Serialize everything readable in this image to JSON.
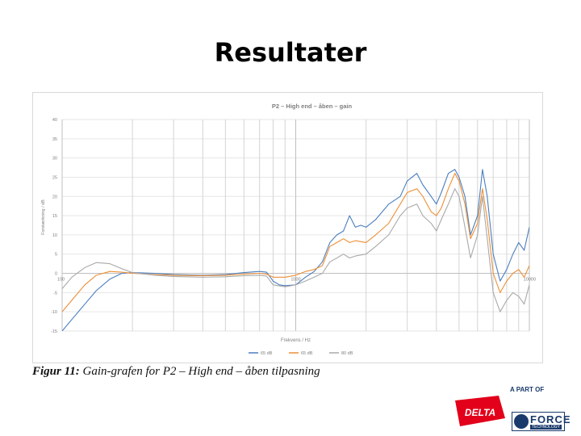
{
  "slide": {
    "title": "Resultater"
  },
  "caption": {
    "label": "Figur 11:",
    "text": "Gain-grafen for P2 – High end – åben tilpasning"
  },
  "logos": {
    "delta": "DELTA",
    "part_of": "A PART OF",
    "force": "FORCE",
    "technology": "TECHNOLOGY"
  },
  "chart_data": {
    "type": "line",
    "title": "P2 – High end – åben – gain",
    "xlabel": "Frekvens / Hz",
    "ylabel": "Forstærkning / dB",
    "x_scale": "log",
    "xlim": [
      100,
      10000
    ],
    "ylim": [
      -15,
      40
    ],
    "yticks": [
      -15,
      -10,
      -5,
      0,
      5,
      10,
      15,
      20,
      25,
      30,
      35,
      40
    ],
    "xtick_labels": [
      {
        "value": 100,
        "label": "100"
      },
      {
        "value": 1000,
        "label": "1000"
      },
      {
        "value": 10000,
        "label": "10000"
      }
    ],
    "grid": true,
    "legend_position": "bottom",
    "colors": [
      "#4a7ebf",
      "#ed8f35",
      "#a9a9a9"
    ],
    "series": [
      {
        "name": "65 dB",
        "points": [
          [
            100,
            -15
          ],
          [
            110,
            -12
          ],
          [
            125,
            -8
          ],
          [
            140,
            -4.5
          ],
          [
            160,
            -1.5
          ],
          [
            180,
            0
          ],
          [
            200,
            0.2
          ],
          [
            250,
            0
          ],
          [
            300,
            -0.3
          ],
          [
            400,
            -0.5
          ],
          [
            500,
            -0.3
          ],
          [
            600,
            0.2
          ],
          [
            700,
            0.5
          ],
          [
            750,
            0.3
          ],
          [
            800,
            -2
          ],
          [
            850,
            -3
          ],
          [
            900,
            -3.2
          ],
          [
            1000,
            -3
          ],
          [
            1100,
            -1
          ],
          [
            1200,
            0.5
          ],
          [
            1300,
            3
          ],
          [
            1400,
            8
          ],
          [
            1500,
            10
          ],
          [
            1600,
            11
          ],
          [
            1700,
            15
          ],
          [
            1800,
            12
          ],
          [
            1900,
            12.5
          ],
          [
            2000,
            12
          ],
          [
            2200,
            14
          ],
          [
            2500,
            18
          ],
          [
            2800,
            20
          ],
          [
            3000,
            24
          ],
          [
            3300,
            26
          ],
          [
            3500,
            23
          ],
          [
            3800,
            20
          ],
          [
            4000,
            18
          ],
          [
            4200,
            21
          ],
          [
            4500,
            26
          ],
          [
            4800,
            27
          ],
          [
            5000,
            25
          ],
          [
            5300,
            20
          ],
          [
            5600,
            10
          ],
          [
            6000,
            15
          ],
          [
            6300,
            27
          ],
          [
            6600,
            20
          ],
          [
            7000,
            5
          ],
          [
            7500,
            -2
          ],
          [
            8000,
            1
          ],
          [
            8500,
            5
          ],
          [
            9000,
            8
          ],
          [
            9500,
            6
          ],
          [
            10000,
            12
          ]
        ]
      },
      {
        "name": "65 dB",
        "points": [
          [
            100,
            -10
          ],
          [
            110,
            -7
          ],
          [
            125,
            -3
          ],
          [
            140,
            -0.5
          ],
          [
            160,
            0.5
          ],
          [
            180,
            0.3
          ],
          [
            200,
            0
          ],
          [
            250,
            -0.3
          ],
          [
            300,
            -0.5
          ],
          [
            400,
            -0.6
          ],
          [
            500,
            -0.5
          ],
          [
            600,
            -0.2
          ],
          [
            700,
            0
          ],
          [
            750,
            -0.2
          ],
          [
            800,
            -1
          ],
          [
            900,
            -1
          ],
          [
            1000,
            -0.5
          ],
          [
            1100,
            0.5
          ],
          [
            1200,
            1
          ],
          [
            1300,
            2
          ],
          [
            1400,
            7
          ],
          [
            1500,
            8
          ],
          [
            1600,
            9
          ],
          [
            1700,
            8
          ],
          [
            1800,
            8.5
          ],
          [
            2000,
            8
          ],
          [
            2200,
            10
          ],
          [
            2500,
            13
          ],
          [
            2800,
            18
          ],
          [
            3000,
            21
          ],
          [
            3300,
            22
          ],
          [
            3500,
            20
          ],
          [
            3800,
            16
          ],
          [
            4000,
            15
          ],
          [
            4200,
            17
          ],
          [
            4500,
            22
          ],
          [
            4800,
            26
          ],
          [
            5000,
            24
          ],
          [
            5300,
            18
          ],
          [
            5600,
            9
          ],
          [
            6000,
            13
          ],
          [
            6300,
            22
          ],
          [
            6600,
            14
          ],
          [
            7000,
            0
          ],
          [
            7500,
            -5
          ],
          [
            8000,
            -2
          ],
          [
            8500,
            0
          ],
          [
            9000,
            1
          ],
          [
            9500,
            -1
          ],
          [
            10000,
            2
          ]
        ]
      },
      {
        "name": "80 dB",
        "points": [
          [
            100,
            -4
          ],
          [
            110,
            -1
          ],
          [
            125,
            1.5
          ],
          [
            140,
            2.8
          ],
          [
            160,
            2.5
          ],
          [
            180,
            1.2
          ],
          [
            200,
            0.2
          ],
          [
            250,
            -0.5
          ],
          [
            300,
            -0.8
          ],
          [
            400,
            -1
          ],
          [
            500,
            -0.9
          ],
          [
            600,
            -0.6
          ],
          [
            700,
            -0.5
          ],
          [
            750,
            -0.7
          ],
          [
            800,
            -3
          ],
          [
            900,
            -3.5
          ],
          [
            1000,
            -3
          ],
          [
            1100,
            -2
          ],
          [
            1200,
            -1
          ],
          [
            1300,
            0
          ],
          [
            1400,
            3
          ],
          [
            1500,
            4
          ],
          [
            1600,
            5
          ],
          [
            1700,
            4
          ],
          [
            1800,
            4.5
          ],
          [
            2000,
            5
          ],
          [
            2200,
            7
          ],
          [
            2500,
            10
          ],
          [
            2800,
            15
          ],
          [
            3000,
            17
          ],
          [
            3300,
            18
          ],
          [
            3500,
            15
          ],
          [
            3800,
            13
          ],
          [
            4000,
            11
          ],
          [
            4200,
            14
          ],
          [
            4500,
            18
          ],
          [
            4800,
            22
          ],
          [
            5000,
            20
          ],
          [
            5300,
            12
          ],
          [
            5600,
            4
          ],
          [
            6000,
            10
          ],
          [
            6300,
            20
          ],
          [
            6600,
            9
          ],
          [
            7000,
            -5
          ],
          [
            7500,
            -10
          ],
          [
            8000,
            -7
          ],
          [
            8500,
            -5
          ],
          [
            9000,
            -6
          ],
          [
            9500,
            -8
          ],
          [
            10000,
            -3
          ]
        ]
      }
    ]
  }
}
